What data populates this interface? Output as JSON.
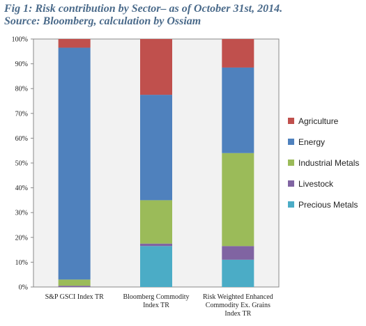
{
  "figure": {
    "title": "Fig 1: Risk contribution by Sector– as of October 31st, 2014. Source: Bloomberg, calculation by Ossiam"
  },
  "chart_data": {
    "type": "bar",
    "stacked": true,
    "categories": [
      [
        "S&P GSCI Index TR"
      ],
      [
        "Bloomberg Commodity",
        "Index TR"
      ],
      [
        "Risk Weighted Enhanced",
        "Commodity Ex. Grains",
        "Index TR"
      ]
    ],
    "series": [
      {
        "name": "Precious Metals",
        "color": "#4bacc6",
        "values": [
          0.0,
          16.5,
          11.0
        ]
      },
      {
        "name": "Livestock",
        "color": "#8064a2",
        "values": [
          0.5,
          1.0,
          5.5
        ]
      },
      {
        "name": "Industrial Metals",
        "color": "#9bbb59",
        "values": [
          2.5,
          17.5,
          37.5
        ]
      },
      {
        "name": "Energy",
        "color": "#4f81bd",
        "values": [
          93.5,
          42.5,
          34.5
        ]
      },
      {
        "name": "Agriculture",
        "color": "#c0504d",
        "values": [
          3.5,
          22.5,
          11.5
        ]
      }
    ],
    "legend_order": [
      "Agriculture",
      "Energy",
      "Industrial Metals",
      "Livestock",
      "Precious Metals"
    ],
    "yticks": [
      "0%",
      "10%",
      "20%",
      "30%",
      "40%",
      "50%",
      "60%",
      "70%",
      "80%",
      "90%",
      "100%"
    ],
    "ylim": [
      0,
      100
    ],
    "xlabel": "",
    "ylabel": "",
    "grid": false,
    "legend_position": "right",
    "plot_background": "#f2f2f2"
  }
}
